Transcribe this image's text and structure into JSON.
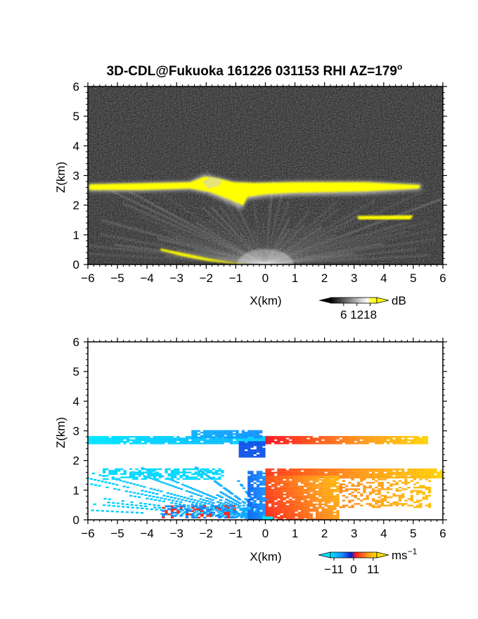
{
  "title": "3D-CDL@Fukuoka 161226 031153 RHI AZ=179",
  "title_sup": "o",
  "chart_data": [
    {
      "type": "heatmap",
      "name": "backscatter",
      "xlabel": "X(km)",
      "ylabel": "Z(km)",
      "xlim": [
        -6,
        6
      ],
      "ylim": [
        0,
        6
      ],
      "xticks": [
        "−6",
        "−5",
        "−4",
        "−3",
        "−2",
        "−1",
        "0",
        "1",
        "2",
        "3",
        "4",
        "5",
        "6"
      ],
      "yticks": [
        "0",
        "1",
        "2",
        "3",
        "4",
        "5",
        "6"
      ],
      "colorbar": {
        "unit": "dB",
        "ticks": [
          "6",
          "12",
          "18"
        ],
        "range": [
          0,
          21
        ]
      },
      "features": [
        {
          "kind": "layer",
          "x": [
            -6,
            5.3
          ],
          "z": [
            2.55,
            2.8
          ],
          "level": "yellow"
        },
        {
          "kind": "layer",
          "x": [
            3.2,
            4.9
          ],
          "z": [
            1.55,
            1.7
          ],
          "level": "yellow"
        },
        {
          "kind": "streak",
          "x": [
            -3.5,
            -0.8
          ],
          "z": [
            0.5,
            0.0
          ],
          "level": "yellow"
        },
        {
          "kind": "rays",
          "origin": [
            0,
            0
          ],
          "level": "gray"
        }
      ]
    },
    {
      "type": "heatmap",
      "name": "doppler-velocity",
      "xlabel": "X(km)",
      "ylabel": "Z(km)",
      "xlim": [
        -6,
        6
      ],
      "ylim": [
        0,
        6
      ],
      "xticks": [
        "−6",
        "−5",
        "−4",
        "−3",
        "−2",
        "−1",
        "0",
        "1",
        "2",
        "3",
        "4",
        "5",
        "6"
      ],
      "yticks": [
        "0",
        "1",
        "2",
        "3",
        "4",
        "5",
        "6"
      ],
      "colorbar": {
        "unit": "ms",
        "unit_sup": "−1",
        "ticks": [
          "−11",
          "0",
          "11"
        ],
        "range": [
          -13,
          13
        ]
      },
      "features": [
        {
          "kind": "layer",
          "x": [
            -6,
            0
          ],
          "z": [
            2.55,
            2.85
          ],
          "v": -9
        },
        {
          "kind": "layer",
          "x": [
            0,
            5.3
          ],
          "z": [
            2.55,
            2.85
          ],
          "v": 9
        },
        {
          "kind": "layer",
          "x": [
            -5.5,
            0
          ],
          "z": [
            0.0,
            1.7
          ],
          "v": -8
        },
        {
          "kind": "layer",
          "x": [
            0,
            6
          ],
          "z": [
            0.0,
            1.7
          ],
          "v": 8
        }
      ]
    }
  ]
}
